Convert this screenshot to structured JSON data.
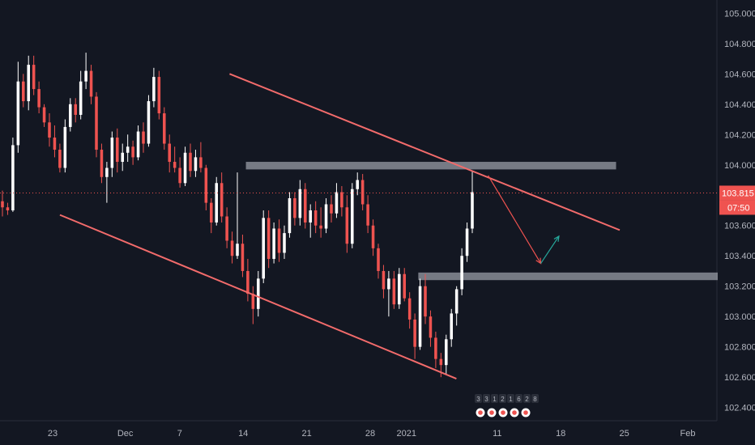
{
  "chart_data": {
    "type": "candlestick",
    "symbol_hint": "",
    "colors": {
      "background": "#131722",
      "up_candle": "#ffffff",
      "down_candle": "#ef5350",
      "channel_line": "#f26b6b",
      "zone": "#c9ccd6",
      "price_line": "#ef5350",
      "up_arrow": "#26a69a",
      "badge": "#ef5350"
    },
    "y_axis": {
      "range": [
        102.35,
        105.05
      ],
      "ticks": [
        "105.000",
        "104.800",
        "104.600",
        "104.400",
        "104.200",
        "104.000",
        "103.800",
        "103.600",
        "103.400",
        "103.200",
        "103.000",
        "102.800",
        "102.600",
        "102.400"
      ]
    },
    "x_axis": {
      "ticks": [
        {
          "label": "23",
          "day": 0
        },
        {
          "label": "Dec",
          "day": 8
        },
        {
          "label": "7",
          "day": 14
        },
        {
          "label": "14",
          "day": 21
        },
        {
          "label": "21",
          "day": 28
        },
        {
          "label": "28",
          "day": 35
        },
        {
          "label": "2021",
          "day": 39
        },
        {
          "label": "11",
          "day": 49
        },
        {
          "label": "18",
          "day": 56
        },
        {
          "label": "25",
          "day": 63
        },
        {
          "label": "Feb",
          "day": 70
        }
      ]
    },
    "current_price": {
      "value": "103.815",
      "countdown": "07:50",
      "level": 103.815
    },
    "channel": {
      "upper": [
        {
          "day": 19.5,
          "price": 104.6
        },
        {
          "day": 62.5,
          "price": 103.57
        }
      ],
      "lower": [
        {
          "day": 0.8,
          "price": 103.67
        },
        {
          "day": 44.5,
          "price": 102.59
        }
      ]
    },
    "zones": [
      {
        "day_start": 21.3,
        "day_end": 62.1,
        "price_top": 104.02,
        "price_bottom": 103.97
      },
      {
        "day_start": 40.3,
        "day_end": 73.3,
        "price_top": 103.29,
        "price_bottom": 103.24
      }
    ],
    "projection": {
      "down": [
        {
          "day": 48.0,
          "price": 103.93
        },
        {
          "day": 53.8,
          "price": 103.35
        }
      ],
      "up": [
        {
          "day": 53.8,
          "price": 103.35
        },
        {
          "day": 55.8,
          "price": 103.53
        }
      ]
    },
    "events_strip": [
      "3",
      "3",
      "1",
      "2",
      "1",
      "6",
      "2",
      "8"
    ],
    "candles": [
      [
        103.76,
        103.83,
        103.66,
        103.72
      ],
      [
        103.72,
        103.75,
        103.67,
        103.7
      ],
      [
        103.7,
        104.18,
        103.69,
        104.13
      ],
      [
        104.13,
        104.68,
        104.08,
        104.55
      ],
      [
        104.55,
        104.6,
        104.38,
        104.42
      ],
      [
        104.42,
        104.72,
        104.36,
        104.66
      ],
      [
        104.66,
        104.72,
        104.46,
        104.5
      ],
      [
        104.5,
        104.55,
        104.34,
        104.38
      ],
      [
        104.38,
        104.4,
        104.25,
        104.28
      ],
      [
        104.28,
        104.34,
        104.12,
        104.18
      ],
      [
        104.18,
        104.26,
        104.05,
        104.1
      ],
      [
        104.1,
        104.14,
        103.95,
        103.98
      ],
      [
        103.98,
        104.3,
        103.95,
        104.25
      ],
      [
        104.25,
        104.44,
        104.22,
        104.4
      ],
      [
        104.4,
        104.44,
        104.28,
        104.33
      ],
      [
        104.33,
        104.62,
        104.3,
        104.55
      ],
      [
        104.55,
        104.74,
        104.5,
        104.62
      ],
      [
        104.62,
        104.66,
        104.4,
        104.45
      ],
      [
        104.45,
        104.48,
        104.05,
        104.1
      ],
      [
        104.1,
        104.14,
        103.88,
        103.92
      ],
      [
        103.92,
        104.02,
        103.75,
        103.98
      ],
      [
        103.98,
        104.22,
        103.92,
        104.18
      ],
      [
        104.18,
        104.24,
        103.95,
        104.02
      ],
      [
        104.02,
        104.14,
        103.96,
        104.08
      ],
      [
        104.08,
        104.2,
        104.02,
        104.12
      ],
      [
        104.12,
        104.16,
        104.0,
        104.05
      ],
      [
        104.05,
        104.26,
        104.03,
        104.22
      ],
      [
        104.22,
        104.28,
        104.08,
        104.14
      ],
      [
        104.14,
        104.46,
        104.12,
        104.42
      ],
      [
        104.42,
        104.64,
        104.38,
        104.58
      ],
      [
        104.58,
        104.62,
        104.3,
        104.34
      ],
      [
        104.34,
        104.38,
        104.1,
        104.14
      ],
      [
        104.14,
        104.2,
        103.95,
        104.02
      ],
      [
        104.02,
        104.12,
        103.95,
        103.98
      ],
      [
        103.98,
        104.05,
        103.85,
        103.88
      ],
      [
        103.88,
        104.12,
        103.86,
        104.08
      ],
      [
        104.08,
        104.14,
        103.92,
        103.96
      ],
      [
        103.96,
        104.1,
        103.92,
        104.05
      ],
      [
        104.05,
        104.15,
        103.95,
        103.98
      ],
      [
        103.98,
        104.0,
        103.7,
        103.75
      ],
      [
        103.75,
        103.78,
        103.55,
        103.62
      ],
      [
        103.62,
        103.92,
        103.6,
        103.88
      ],
      [
        103.88,
        103.95,
        103.62,
        103.66
      ],
      [
        103.66,
        103.72,
        103.45,
        103.5
      ],
      [
        103.5,
        103.56,
        103.35,
        103.4
      ],
      [
        103.4,
        103.95,
        103.38,
        103.48
      ],
      [
        103.48,
        103.54,
        103.26,
        103.3
      ],
      [
        103.3,
        103.38,
        103.1,
        103.15
      ],
      [
        103.15,
        103.2,
        102.95,
        103.05
      ],
      [
        103.05,
        103.3,
        103.0,
        103.25
      ],
      [
        103.25,
        103.7,
        103.22,
        103.65
      ],
      [
        103.65,
        103.7,
        103.32,
        103.38
      ],
      [
        103.38,
        103.62,
        103.35,
        103.58
      ],
      [
        103.58,
        103.64,
        103.36,
        103.42
      ],
      [
        103.42,
        103.6,
        103.38,
        103.55
      ],
      [
        103.55,
        103.82,
        103.52,
        103.78
      ],
      [
        103.78,
        103.82,
        103.6,
        103.65
      ],
      [
        103.65,
        103.9,
        103.6,
        103.84
      ],
      [
        103.84,
        103.88,
        103.58,
        103.62
      ],
      [
        103.62,
        103.74,
        103.52,
        103.7
      ],
      [
        103.7,
        103.76,
        103.55,
        103.6
      ],
      [
        103.6,
        103.72,
        103.52,
        103.58
      ],
      [
        103.58,
        103.78,
        103.55,
        103.74
      ],
      [
        103.74,
        103.8,
        103.62,
        103.68
      ],
      [
        103.68,
        103.88,
        103.65,
        103.82
      ],
      [
        103.82,
        103.86,
        103.66,
        103.72
      ],
      [
        103.72,
        103.8,
        103.42,
        103.48
      ],
      [
        103.48,
        103.88,
        103.45,
        103.84
      ],
      [
        103.84,
        103.95,
        103.8,
        103.9
      ],
      [
        103.9,
        103.94,
        103.7,
        103.74
      ],
      [
        103.74,
        103.8,
        103.55,
        103.6
      ],
      [
        103.6,
        103.64,
        103.4,
        103.45
      ],
      [
        103.45,
        103.48,
        103.25,
        103.3
      ],
      [
        103.3,
        103.34,
        103.12,
        103.18
      ],
      [
        103.18,
        103.3,
        103.0,
        103.25
      ],
      [
        103.25,
        103.3,
        103.05,
        103.08
      ],
      [
        103.08,
        103.32,
        103.05,
        103.28
      ],
      [
        103.28,
        103.32,
        103.1,
        103.12
      ],
      [
        103.12,
        103.16,
        102.92,
        102.98
      ],
      [
        102.98,
        103.02,
        102.72,
        102.8
      ],
      [
        102.8,
        103.25,
        102.78,
        103.2
      ],
      [
        103.2,
        103.28,
        102.95,
        103.0
      ],
      [
        103.0,
        103.04,
        102.8,
        102.86
      ],
      [
        102.86,
        102.9,
        102.66,
        102.72
      ],
      [
        102.72,
        102.76,
        102.6,
        102.68
      ],
      [
        102.68,
        102.88,
        102.62,
        102.85
      ],
      [
        102.85,
        103.05,
        102.8,
        103.02
      ],
      [
        103.02,
        103.2,
        102.94,
        103.18
      ],
      [
        103.18,
        103.45,
        103.14,
        103.4
      ],
      [
        103.4,
        103.62,
        103.36,
        103.58
      ],
      [
        103.58,
        103.96,
        103.55,
        103.82
      ]
    ]
  }
}
